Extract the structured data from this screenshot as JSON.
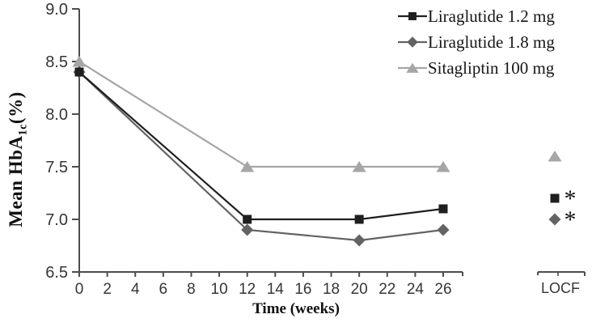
{
  "chart_data": {
    "type": "line",
    "x_label": "Time (weeks)",
    "y_label_parts": {
      "pre": "Mean HbA",
      "sub": "1c",
      "post": "(%)"
    },
    "x_ticks": [
      0,
      2,
      4,
      6,
      8,
      10,
      12,
      14,
      16,
      18,
      20,
      22,
      24,
      26
    ],
    "y_ticks": [
      9.0,
      8.5,
      8.0,
      7.5,
      7.0,
      6.5
    ],
    "y_range": [
      6.5,
      9.0
    ],
    "x_points": [
      0,
      12,
      20,
      26
    ],
    "locf_label": "LOCF",
    "significance_symbol": "*",
    "grid": false,
    "legend_position": "top-right",
    "axis_color": "#4d4d4d",
    "tick_text_color": "#363636",
    "series": [
      {
        "name": "Liraglutide 1.2 mg",
        "marker": "square",
        "color": "#1f1f1f",
        "values": [
          8.4,
          7.0,
          7.0,
          7.1
        ],
        "locf_value": 7.2,
        "locf_significant": true
      },
      {
        "name": "Liraglutide 1.8 mg",
        "marker": "diamond",
        "color": "#636363",
        "values": [
          8.4,
          6.9,
          6.8,
          6.9
        ],
        "locf_value": 7.0,
        "locf_significant": true
      },
      {
        "name": "Sitagliptin 100 mg",
        "marker": "triangle",
        "color": "#a6a6a6",
        "values": [
          8.5,
          7.5,
          7.5,
          7.5
        ],
        "locf_value": 7.6,
        "locf_significant": false
      }
    ]
  }
}
